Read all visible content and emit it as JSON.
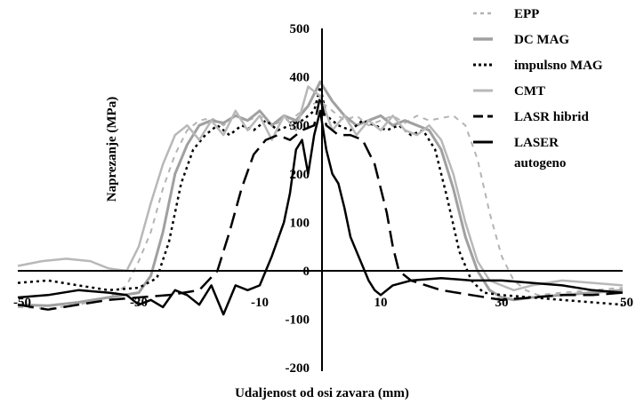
{
  "chart_data": {
    "type": "line",
    "xlabel": "Udaljenost od osi zavara (mm)",
    "ylabel": "Naprezanje (MPa)",
    "xlim": [
      -50,
      50
    ],
    "ylim": [
      -200,
      500
    ],
    "x_ticks": [
      -50,
      -30,
      -10,
      10,
      30,
      50
    ],
    "x_tick_labels": [
      "-50",
      "-30",
      "-10",
      "10",
      "30",
      "50"
    ],
    "y_ticks": [
      -200,
      -100,
      0,
      100,
      200,
      300,
      400,
      500
    ],
    "y_tick_labels": [
      "-200",
      "-100",
      "0",
      "100",
      "200",
      "300",
      "400",
      "500"
    ],
    "grid": false,
    "legend_position": "top-right",
    "series": [
      {
        "name": "EPP",
        "legend_lines": [
          "EPP"
        ],
        "color": "#b4b4b4",
        "dash": "6,6",
        "width": 2,
        "x": [
          -50,
          -45,
          -40,
          -35,
          -32,
          -30,
          -28,
          -26,
          -24,
          -22,
          -20,
          -18,
          -16,
          -14,
          -12,
          -10,
          -8,
          -6,
          -4,
          -2,
          0,
          2,
          4,
          6,
          8,
          10,
          12,
          14,
          16,
          18,
          20,
          22,
          24,
          26,
          28,
          30,
          32,
          34,
          36,
          40,
          45,
          50
        ],
        "y": [
          -75,
          -78,
          -70,
          -55,
          -30,
          20,
          80,
          170,
          240,
          290,
          310,
          315,
          300,
          320,
          310,
          320,
          300,
          310,
          320,
          340,
          350,
          330,
          310,
          320,
          300,
          310,
          320,
          305,
          320,
          310,
          315,
          320,
          300,
          230,
          120,
          30,
          -20,
          -40,
          -50,
          -45,
          -40,
          -35
        ]
      },
      {
        "name": "DC MAG",
        "legend_lines": [
          "DC MAG"
        ],
        "color": "#a0a0a0",
        "dash": "",
        "width": 3,
        "x": [
          -50,
          -45,
          -40,
          -35,
          -30,
          -28,
          -26,
          -24,
          -22,
          -20,
          -18,
          -16,
          -14,
          -12,
          -10,
          -8,
          -6,
          -4,
          -2,
          0,
          2,
          4,
          6,
          8,
          10,
          12,
          14,
          16,
          18,
          20,
          22,
          24,
          26,
          28,
          30,
          32,
          35,
          40,
          45,
          50
        ],
        "y": [
          -70,
          -72,
          -65,
          -55,
          -45,
          -10,
          80,
          200,
          260,
          300,
          310,
          305,
          320,
          310,
          330,
          300,
          320,
          310,
          340,
          390,
          350,
          320,
          300,
          310,
          320,
          300,
          310,
          300,
          290,
          250,
          170,
          70,
          0,
          -40,
          -55,
          -60,
          -55,
          -50,
          -45,
          -40
        ]
      },
      {
        "name": "impulsno MAG",
        "legend_lines": [
          "impulsno MAG"
        ],
        "color": "#000000",
        "dash": "3,4",
        "width": 2.5,
        "x": [
          -50,
          -45,
          -40,
          -35,
          -30,
          -27,
          -25,
          -23,
          -21,
          -19,
          -17,
          -15,
          -13,
          -11,
          -9,
          -7,
          -5,
          -3,
          -1,
          0,
          1,
          3,
          5,
          7,
          9,
          11,
          13,
          15,
          17,
          19,
          21,
          23,
          25,
          27,
          30,
          35,
          40,
          45,
          50
        ],
        "y": [
          -25,
          -20,
          -30,
          -40,
          -35,
          -15,
          60,
          180,
          250,
          280,
          300,
          280,
          300,
          290,
          310,
          290,
          300,
          310,
          330,
          380,
          320,
          300,
          290,
          310,
          300,
          290,
          300,
          280,
          290,
          250,
          150,
          40,
          -20,
          -45,
          -50,
          -55,
          -60,
          -65,
          -70
        ]
      },
      {
        "name": "CMT",
        "legend_lines": [
          "CMT"
        ],
        "color": "#b8b8b8",
        "dash": "",
        "width": 2.5,
        "x": [
          -50,
          -46,
          -42,
          -38,
          -35,
          -32,
          -30,
          -28,
          -26,
          -24,
          -22,
          -20,
          -18,
          -16,
          -14,
          -12,
          -10,
          -8,
          -6,
          -4,
          -2,
          0,
          2,
          4,
          6,
          8,
          10,
          12,
          14,
          16,
          18,
          20,
          22,
          24,
          26,
          28,
          30,
          32,
          35,
          40,
          45,
          50
        ],
        "y": [
          10,
          20,
          25,
          20,
          5,
          0,
          50,
          140,
          220,
          280,
          300,
          270,
          310,
          280,
          330,
          290,
          320,
          270,
          320,
          290,
          380,
          360,
          290,
          320,
          280,
          310,
          290,
          320,
          290,
          280,
          300,
          270,
          200,
          100,
          20,
          -20,
          -30,
          -40,
          -30,
          -20,
          -25,
          -30
        ]
      },
      {
        "name": "LASR hibrid",
        "legend_lines": [
          "LASR hibrid"
        ],
        "color": "#000000",
        "dash": "18,8",
        "width": 2.5,
        "x": [
          -50,
          -45,
          -40,
          -35,
          -30,
          -25,
          -20,
          -17,
          -15,
          -13,
          -11,
          -9,
          -7,
          -5,
          -3,
          -1,
          0,
          1,
          3,
          5,
          7,
          9,
          11,
          12,
          13,
          15,
          20,
          25,
          30,
          35,
          40,
          45,
          50
        ],
        "y": [
          -70,
          -80,
          -70,
          -60,
          -55,
          -50,
          -40,
          0,
          80,
          170,
          240,
          270,
          280,
          270,
          290,
          300,
          360,
          300,
          280,
          280,
          270,
          220,
          120,
          50,
          0,
          -20,
          -40,
          -50,
          -60,
          -55,
          -50,
          -50,
          -45
        ]
      },
      {
        "name": "LASER autogeno",
        "legend_lines": [
          "LASER",
          "autogeno"
        ],
        "color": "#000000",
        "dash": "",
        "width": 2.5,
        "x": [
          -50,
          -45,
          -40,
          -35,
          -32,
          -30,
          -28,
          -26,
          -24,
          -22,
          -20,
          -18,
          -16,
          -14,
          -12,
          -10,
          -8,
          -6,
          -5,
          -4,
          -3,
          -2,
          -1,
          0,
          1,
          2,
          3,
          4,
          5,
          6,
          7,
          8,
          9,
          10,
          12,
          15,
          20,
          25,
          30,
          35,
          40,
          45,
          50
        ],
        "y": [
          -55,
          -50,
          -40,
          -45,
          -50,
          -70,
          -60,
          -75,
          -40,
          -50,
          -70,
          -30,
          -90,
          -30,
          -40,
          -30,
          30,
          100,
          160,
          250,
          270,
          200,
          280,
          330,
          250,
          200,
          180,
          130,
          70,
          40,
          10,
          -20,
          -40,
          -50,
          -30,
          -20,
          -15,
          -20,
          -20,
          -25,
          -30,
          -40,
          -45
        ]
      }
    ]
  }
}
